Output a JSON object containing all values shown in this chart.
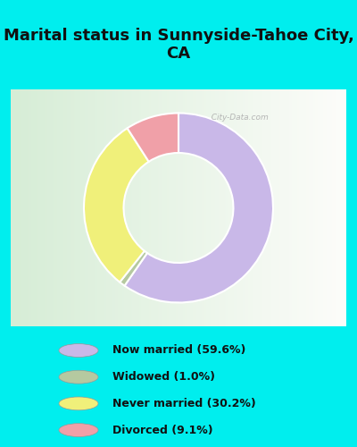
{
  "title": "Marital status in Sunnyside-Tahoe City,\nCA",
  "slices": [
    59.6,
    1.0,
    30.2,
    9.1
  ],
  "labels": [
    "Now married (59.6%)",
    "Widowed (1.0%)",
    "Never married (30.2%)",
    "Divorced (9.1%)"
  ],
  "colors": [
    "#c9b8e8",
    "#b5c9a0",
    "#f0f07a",
    "#f0a0a8"
  ],
  "background_color": "#00eeee",
  "chart_bg_color": "#e8f5e5",
  "watermark": "  City-Data.com",
  "donut_width": 0.42,
  "startangle": 90
}
